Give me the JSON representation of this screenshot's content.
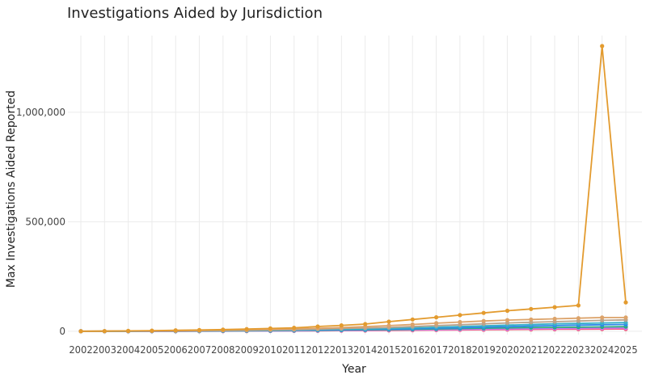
{
  "chart_data": {
    "type": "line",
    "title": "Investigations Aided by Jurisdiction",
    "xlabel": "Year",
    "ylabel": "Max Investigations Aided Reported",
    "x": [
      "2002",
      "2003",
      "2004",
      "2005",
      "2006",
      "2007",
      "2008",
      "2009",
      "2010",
      "2011",
      "2012",
      "2013",
      "2014",
      "2015",
      "2016",
      "2017",
      "2018",
      "2019",
      "2020",
      "2021",
      "2022",
      "2023",
      "2024",
      "2025"
    ],
    "ylim": [
      -15000,
      1350000
    ],
    "yticks": [
      0,
      500000,
      1000000
    ],
    "ytick_labels": [
      "0",
      "500,000",
      "1,000,000"
    ],
    "grid": true,
    "legend": "none",
    "series": [
      {
        "color": "#e39b2f",
        "values": [
          500,
          1000,
          2000,
          3000,
          4500,
          6000,
          8000,
          10000,
          13000,
          16000,
          22000,
          27000,
          33000,
          44000,
          54000,
          64000,
          74000,
          84000,
          94000,
          102000,
          110000,
          118000,
          1302000,
          132000
        ]
      },
      {
        "color": "#dca36a",
        "values": [
          300,
          700,
          1200,
          2000,
          3000,
          4000,
          5500,
          7000,
          9000,
          11000,
          14000,
          17000,
          21000,
          26000,
          31000,
          37000,
          42000,
          47000,
          51000,
          54000,
          57000,
          60000,
          63000,
          63000
        ]
      },
      {
        "color": "#b9a38d",
        "values": [
          200,
          500,
          900,
          1500,
          2200,
          3000,
          4000,
          5000,
          6500,
          8000,
          10000,
          12500,
          15000,
          18000,
          22000,
          26000,
          30000,
          34000,
          38000,
          41000,
          44000,
          47000,
          50000,
          52000
        ]
      },
      {
        "color": "#3ab0c9",
        "values": [
          150,
          400,
          700,
          1100,
          1600,
          2200,
          3000,
          3800,
          4800,
          6000,
          7500,
          9000,
          11000,
          13500,
          16000,
          19000,
          22000,
          25000,
          28000,
          31000,
          34000,
          36000,
          38000,
          40000
        ]
      },
      {
        "color": "#2f88e8",
        "values": [
          100,
          300,
          500,
          800,
          1200,
          1700,
          2300,
          3000,
          3800,
          4700,
          5800,
          7000,
          8500,
          10000,
          12000,
          14000,
          16500,
          19000,
          21500,
          24000,
          26000,
          28000,
          30000,
          31000
        ]
      },
      {
        "color": "#2eae7c",
        "values": [
          100,
          250,
          450,
          700,
          1000,
          1400,
          1900,
          2500,
          3100,
          3800,
          4700,
          5700,
          6800,
          8000,
          9500,
          11000,
          12500,
          14000,
          15500,
          17000,
          18000,
          19000,
          20000,
          21000
        ]
      },
      {
        "color": "#c77cff",
        "values": [
          80,
          200,
          350,
          550,
          800,
          1100,
          1500,
          1900,
          2400,
          3000,
          3700,
          4500,
          5400,
          6400,
          7500,
          8600,
          9800,
          11000,
          12200,
          13300,
          14300,
          15200,
          16000,
          16500
        ]
      },
      {
        "color": "#ef5fa8",
        "values": [
          60,
          150,
          270,
          420,
          600,
          850,
          1150,
          1500,
          1900,
          2350,
          2900,
          3500,
          4200,
          5000,
          5900,
          6800,
          7800,
          8800,
          9800,
          10700,
          11500,
          12200,
          12800,
          13200
        ]
      },
      {
        "color": "#f0606b",
        "values": [
          50,
          120,
          220,
          340,
          500,
          700,
          950,
          1250,
          1600,
          2000,
          2450,
          2950,
          3500,
          4150,
          4850,
          5600,
          6400,
          7200,
          8000,
          8700,
          9300,
          9800,
          10200,
          10500
        ]
      }
    ]
  }
}
